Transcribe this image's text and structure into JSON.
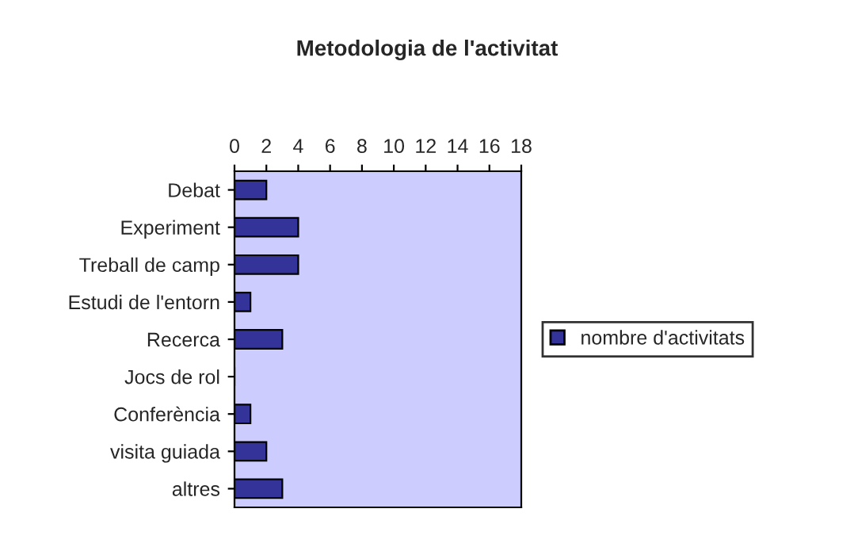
{
  "chart_data": {
    "type": "bar",
    "orientation": "horizontal",
    "title": "Metodologia de l'activitat",
    "categories": [
      "Debat",
      "Experiment",
      "Treball de camp",
      "Estudi de l'entorn",
      "Recerca",
      "Jocs de rol",
      "Conferència",
      "visita guiada",
      "altres"
    ],
    "series": [
      {
        "name": "nombre d'activitats",
        "color": "#333399",
        "values": [
          2,
          4,
          4,
          1,
          3,
          0,
          1,
          2,
          3
        ]
      }
    ],
    "xlim": [
      0,
      18
    ],
    "xticks": [
      0,
      2,
      4,
      6,
      8,
      10,
      12,
      14,
      16,
      18
    ],
    "grid": false,
    "legend": "right"
  }
}
